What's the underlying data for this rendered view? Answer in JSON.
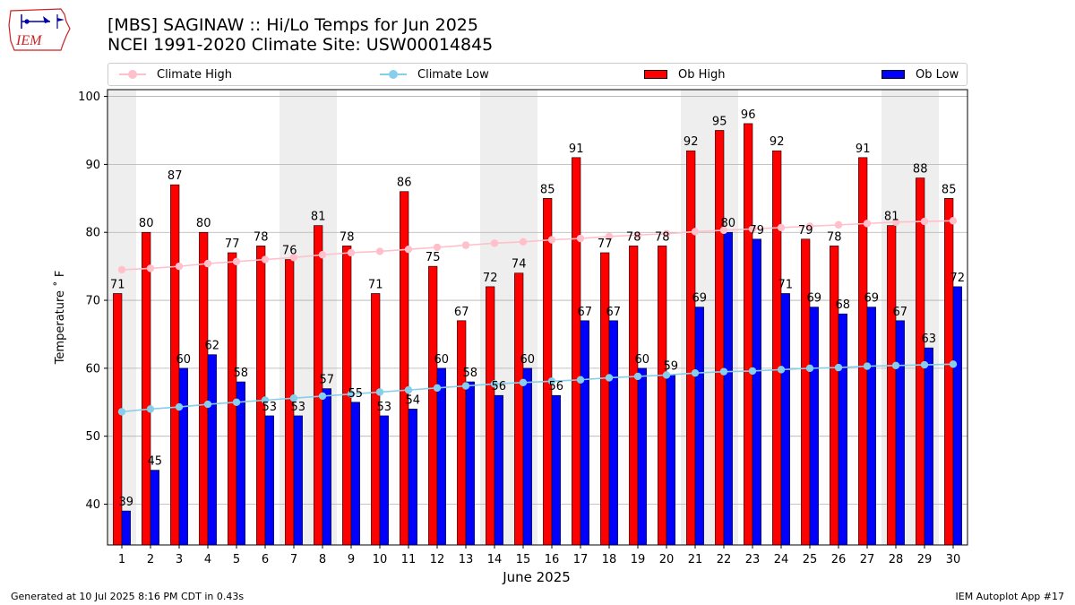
{
  "header": {
    "title_line1": "[MBS] SAGINAW :: Hi/Lo Temps for Jun 2025",
    "title_line2": "NCEI 1991-2020 Climate Site: USW00014845"
  },
  "logo": {
    "text": "IEM",
    "icon": "iem-iowa-weather-logo"
  },
  "legend": {
    "climate_high": "Climate High",
    "climate_low": "Climate Low",
    "ob_high": "Ob High",
    "ob_low": "Ob Low"
  },
  "colors": {
    "ob_high": "#ff0000",
    "ob_low": "#0000ff",
    "climate_high": "#ffc0cb",
    "climate_low": "#87ceeb",
    "weekend_shade": "#eeeeee",
    "grid": "#b0b0b0"
  },
  "chart_data": {
    "type": "bar",
    "xlabel": "June 2025",
    "ylabel": "Temperature ˚ F",
    "ylim": [
      34,
      101
    ],
    "yticks": [
      40,
      50,
      60,
      70,
      80,
      90,
      100
    ],
    "grid": "horizontal",
    "legend_position": "top",
    "categories": [
      "1",
      "2",
      "3",
      "4",
      "5",
      "6",
      "7",
      "8",
      "9",
      "10",
      "11",
      "12",
      "13",
      "14",
      "15",
      "16",
      "17",
      "18",
      "19",
      "20",
      "21",
      "22",
      "23",
      "24",
      "25",
      "26",
      "27",
      "28",
      "29",
      "30"
    ],
    "shaded_days": [
      1,
      7,
      8,
      14,
      15,
      21,
      22,
      28,
      29
    ],
    "series": [
      {
        "name": "Ob High",
        "kind": "bar",
        "values": [
          71,
          80,
          87,
          80,
          77,
          78,
          76,
          81,
          78,
          71,
          86,
          75,
          67,
          72,
          74,
          85,
          91,
          77,
          78,
          78,
          92,
          95,
          96,
          92,
          79,
          78,
          91,
          81,
          88,
          85
        ]
      },
      {
        "name": "Ob Low",
        "kind": "bar",
        "values": [
          39,
          45,
          60,
          62,
          58,
          53,
          53,
          57,
          55,
          53,
          54,
          60,
          58,
          56,
          60,
          56,
          67,
          67,
          60,
          59,
          69,
          80,
          79,
          71,
          69,
          68,
          69,
          67,
          63,
          72
        ]
      },
      {
        "name": "Climate High",
        "kind": "line",
        "values": [
          74.5,
          74.7,
          75.0,
          75.4,
          75.7,
          76.0,
          76.3,
          76.7,
          77.0,
          77.2,
          77.5,
          77.8,
          78.1,
          78.4,
          78.6,
          78.9,
          79.1,
          79.4,
          79.6,
          79.8,
          80.1,
          80.3,
          80.5,
          80.7,
          80.9,
          81.1,
          81.3,
          81.5,
          81.6,
          81.7
        ]
      },
      {
        "name": "Climate Low",
        "kind": "line",
        "values": [
          53.6,
          54.0,
          54.3,
          54.7,
          55.0,
          55.3,
          55.6,
          55.9,
          56.2,
          56.5,
          56.8,
          57.1,
          57.4,
          57.7,
          57.9,
          58.1,
          58.3,
          58.6,
          58.8,
          59.0,
          59.3,
          59.5,
          59.6,
          59.8,
          60.0,
          60.1,
          60.3,
          60.4,
          60.5,
          60.6
        ]
      }
    ]
  },
  "footer": {
    "generated": "Generated at 10 Jul 2025 8:16 PM CDT in 0.43s",
    "app": "IEM Autoplot App #17"
  }
}
